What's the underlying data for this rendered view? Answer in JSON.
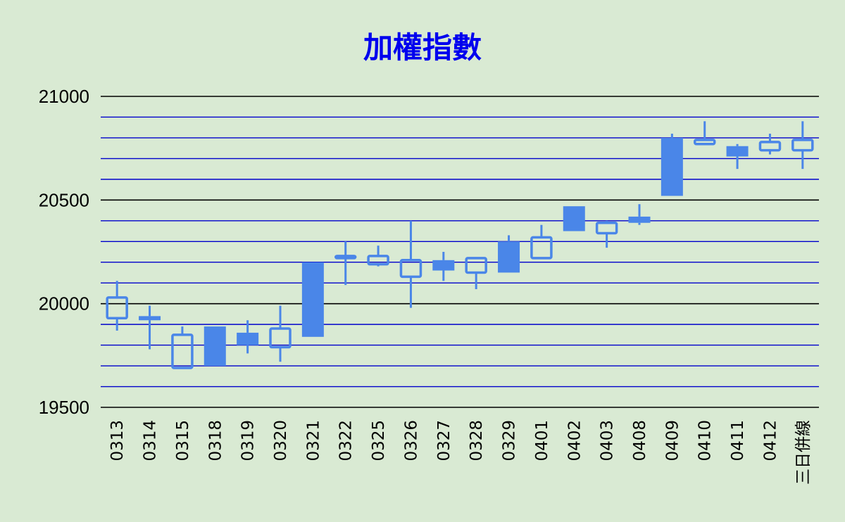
{
  "chart_data": {
    "type": "candlestick",
    "title": "加權指數",
    "xlabel": "",
    "ylabel": "",
    "ylim": [
      19500,
      21000
    ],
    "yticks": [
      19500,
      20000,
      20500,
      21000
    ],
    "minor_grid_step": 100,
    "grid": true,
    "colors": {
      "candle": "#4a86e8",
      "major_grid": "#000000",
      "minor_grid": "#0000cc",
      "title": "#0000ee",
      "background": "#d9ead3"
    },
    "candles": [
      {
        "x": "0313",
        "open": 19930,
        "high": 20110,
        "low": 19870,
        "close": 20030
      },
      {
        "x": "0314",
        "open": 19940,
        "high": 19990,
        "low": 19780,
        "close": 19920
      },
      {
        "x": "0315",
        "open": 19690,
        "high": 19890,
        "low": 19690,
        "close": 19850
      },
      {
        "x": "0318",
        "open": 19890,
        "high": 19890,
        "low": 19700,
        "close": 19700
      },
      {
        "x": "0319",
        "open": 19860,
        "high": 19920,
        "low": 19760,
        "close": 19800
      },
      {
        "x": "0320",
        "open": 19790,
        "high": 19990,
        "low": 19720,
        "close": 19880
      },
      {
        "x": "0321",
        "open": 20200,
        "high": 20200,
        "low": 19840,
        "close": 19840
      },
      {
        "x": "0322",
        "open": 20220,
        "high": 20300,
        "low": 20090,
        "close": 20230
      },
      {
        "x": "0325",
        "open": 20190,
        "high": 20280,
        "low": 20180,
        "close": 20230
      },
      {
        "x": "0326",
        "open": 20130,
        "high": 20400,
        "low": 19980,
        "close": 20210
      },
      {
        "x": "0327",
        "open": 20210,
        "high": 20250,
        "low": 20110,
        "close": 20160
      },
      {
        "x": "0328",
        "open": 20150,
        "high": 20220,
        "low": 20070,
        "close": 20220
      },
      {
        "x": "0329",
        "open": 20300,
        "high": 20330,
        "low": 20150,
        "close": 20150
      },
      {
        "x": "0401",
        "open": 20220,
        "high": 20380,
        "low": 20220,
        "close": 20320
      },
      {
        "x": "0402",
        "open": 20470,
        "high": 20470,
        "low": 20350,
        "close": 20350
      },
      {
        "x": "0403",
        "open": 20340,
        "high": 20400,
        "low": 20270,
        "close": 20390
      },
      {
        "x": "0408",
        "open": 20420,
        "high": 20480,
        "low": 20380,
        "close": 20390
      },
      {
        "x": "0409",
        "open": 20800,
        "high": 20820,
        "low": 20520,
        "close": 20520
      },
      {
        "x": "0410",
        "open": 20770,
        "high": 20880,
        "low": 20770,
        "close": 20790
      },
      {
        "x": "0411",
        "open": 20760,
        "high": 20770,
        "low": 20650,
        "close": 20710
      },
      {
        "x": "0412",
        "open": 20740,
        "high": 20820,
        "low": 20720,
        "close": 20780
      },
      {
        "x": "三日併線",
        "open": 20740,
        "high": 20880,
        "low": 20650,
        "close": 20790
      }
    ]
  }
}
